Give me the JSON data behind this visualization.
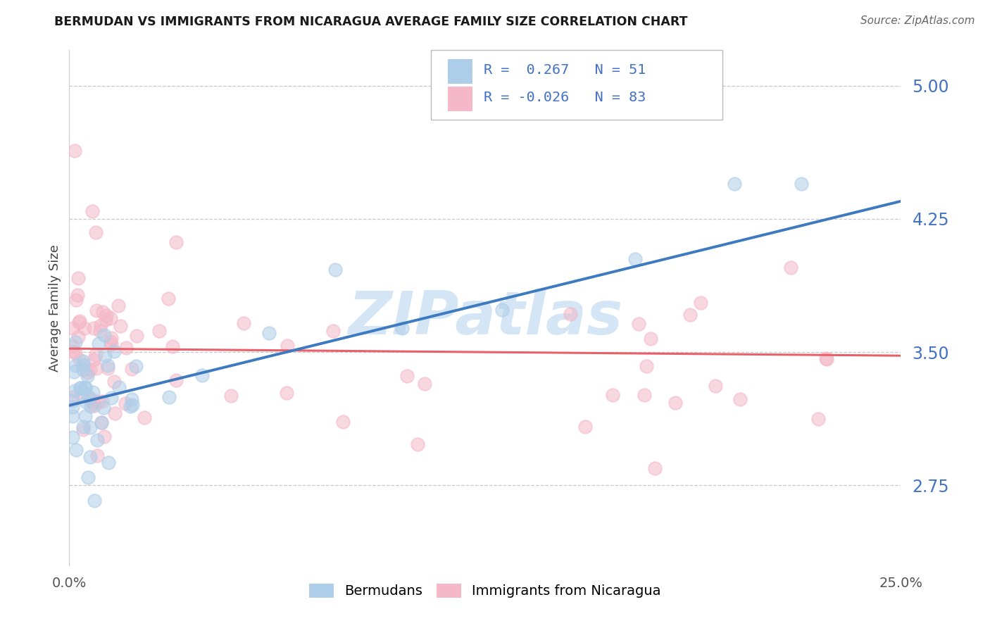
{
  "title": "BERMUDAN VS IMMIGRANTS FROM NICARAGUA AVERAGE FAMILY SIZE CORRELATION CHART",
  "source": "Source: ZipAtlas.com",
  "ylabel": "Average Family Size",
  "yticks": [
    2.75,
    3.5,
    4.25,
    5.0
  ],
  "xlim": [
    0.0,
    0.25
  ],
  "ylim": [
    2.3,
    5.2
  ],
  "legend_label_1": "Bermudans",
  "legend_label_2": "Immigrants from Nicaragua",
  "R1": 0.267,
  "N1": 51,
  "R2": -0.026,
  "N2": 83,
  "color_blue": "#aecde8",
  "color_pink": "#f4b8c8",
  "color_blue_line": "#3d7abf",
  "color_pink_line": "#e8606a",
  "color_blue_text": "#4472c4",
  "watermark_color": "#d0e4f5",
  "bg_color": "#ffffff"
}
